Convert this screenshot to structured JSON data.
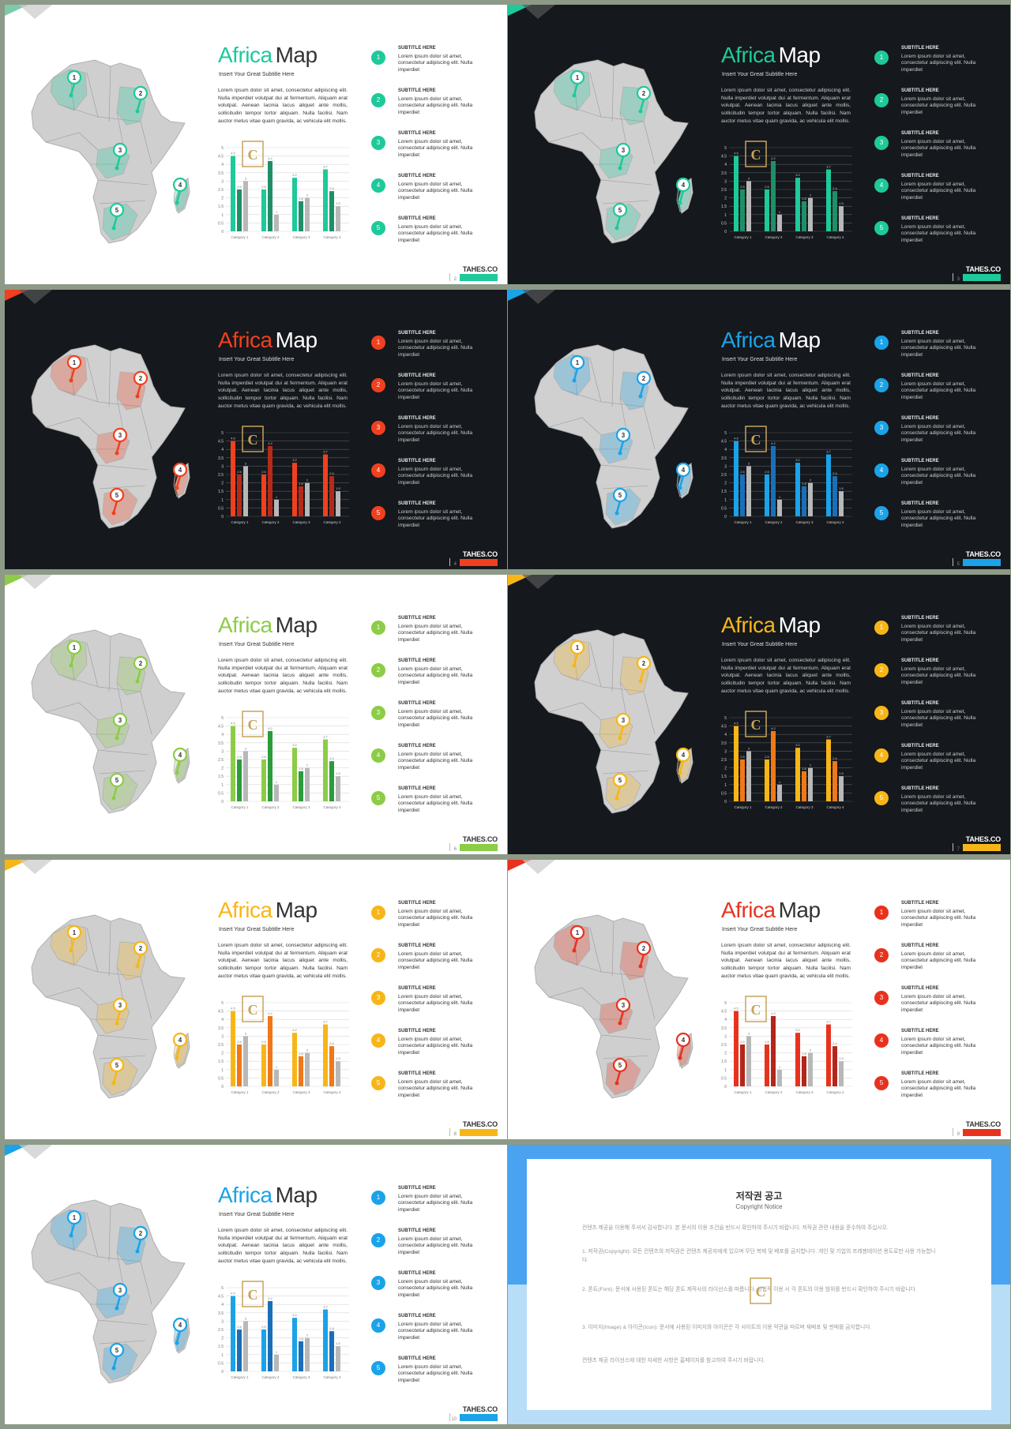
{
  "slides": [
    {
      "theme": "light",
      "accent": "#1ec99a",
      "accent2": "#1f8f68",
      "page": "2"
    },
    {
      "theme": "dark",
      "accent": "#1ec99a",
      "accent2": "#1f8f68",
      "page": "3"
    },
    {
      "theme": "dark",
      "accent": "#f0401f",
      "accent2": "#b52a18",
      "page": "4"
    },
    {
      "theme": "dark",
      "accent": "#1aa3e8",
      "accent2": "#1a6fb8",
      "page": "5"
    },
    {
      "theme": "light",
      "accent": "#8ccc47",
      "accent2": "#2b9c3b",
      "page": "6"
    },
    {
      "theme": "dark",
      "accent": "#f7b618",
      "accent2": "#f07818",
      "page": "7"
    },
    {
      "theme": "light",
      "accent": "#f7b618",
      "accent2": "#f07818",
      "page": "8"
    },
    {
      "theme": "light",
      "accent": "#e8321e",
      "accent2": "#b5261a",
      "page": "9"
    },
    {
      "theme": "light",
      "accent": "#1aa3e8",
      "accent2": "#1a6fb8",
      "page": "10"
    }
  ],
  "common": {
    "title_word1": "Africa",
    "title_word2": "Map",
    "subtitle": "Insert Your Great Subtitle Here",
    "body": "Lorem ipsum dolor sit amet, consectetur adipiscing elit. Nulla imperdiet volutpat dui at fermentum. Aliquam erat volutpat. Aenean lacinia lacus aliquet ante mollis, sollicitudin tempor tortor aliquam. Nulla facilisi. Nam auctor metus vitae quam gravida, ac vehicula elit mollis.",
    "item_title": "SUBTITLE HERE",
    "item_desc": "Lorem ipsum dolor sit amet, consectetur adipiscing elit. Nulla imperdiet",
    "item_numbers": [
      "1",
      "2",
      "3",
      "4",
      "5"
    ],
    "logo": "TAHES.CO",
    "gridlight": "#d9d9d9",
    "griddark": "#555b61",
    "grey_bar": "#b8b8b8"
  },
  "chart_data": {
    "type": "bar",
    "categories": [
      "Category 1",
      "Category 2",
      "Category 3",
      "Category 4"
    ],
    "series": [
      {
        "values": [
          4.5,
          2.5,
          3.2,
          3.7
        ]
      },
      {
        "values": [
          2.5,
          4.2,
          1.8,
          2.4
        ]
      },
      {
        "values": [
          3,
          1,
          2,
          1.5
        ]
      }
    ],
    "ylim": [
      0,
      5
    ],
    "yticks": [
      "0",
      "0.5",
      "1",
      "1.5",
      "2",
      "2.5",
      "3",
      "3.5",
      "4",
      "4.5",
      "5"
    ]
  },
  "notice": {
    "title": "저작권 공고",
    "subtitle": "Copyright Notice",
    "colors": {
      "top": "#4aa3f0",
      "bottom": "#b8ddf7"
    },
    "paragraphs": [
      "컨텐츠 제공을 이용해 주셔서 감사합니다. 본 문서의 이용 조건을 반드시 확인하여 주시기 바랍니다. 저작권 관련 내용을 준수하여 주십시오.",
      "1. 저작권(Copyright): 모든 컨텐츠의 저작권은 컨텐츠 제공자에게 있으며 무단 복제 및 배포를 금지합니다. 개인 및 기업의 프레젠테이션 용도로만 사용 가능합니다.",
      "2. 폰트(Font): 문서에 사용된 폰트는 해당 폰트 제작사의 라이선스를 따릅니다. 상업적 이용 시 각 폰트의 이용 범위를 반드시 확인하여 주시기 바랍니다.",
      "3. 이미지(Image) & 아이콘(Icon): 문서에 사용된 이미지와 아이콘은 각 사이트의 이용 약관을 따르며 재배포 및 판매를 금지합니다.",
      "컨텐츠 제공 라이선스에 대한 자세한 사항은 홈페이지를 참고하여 주시기 바랍니다."
    ]
  }
}
